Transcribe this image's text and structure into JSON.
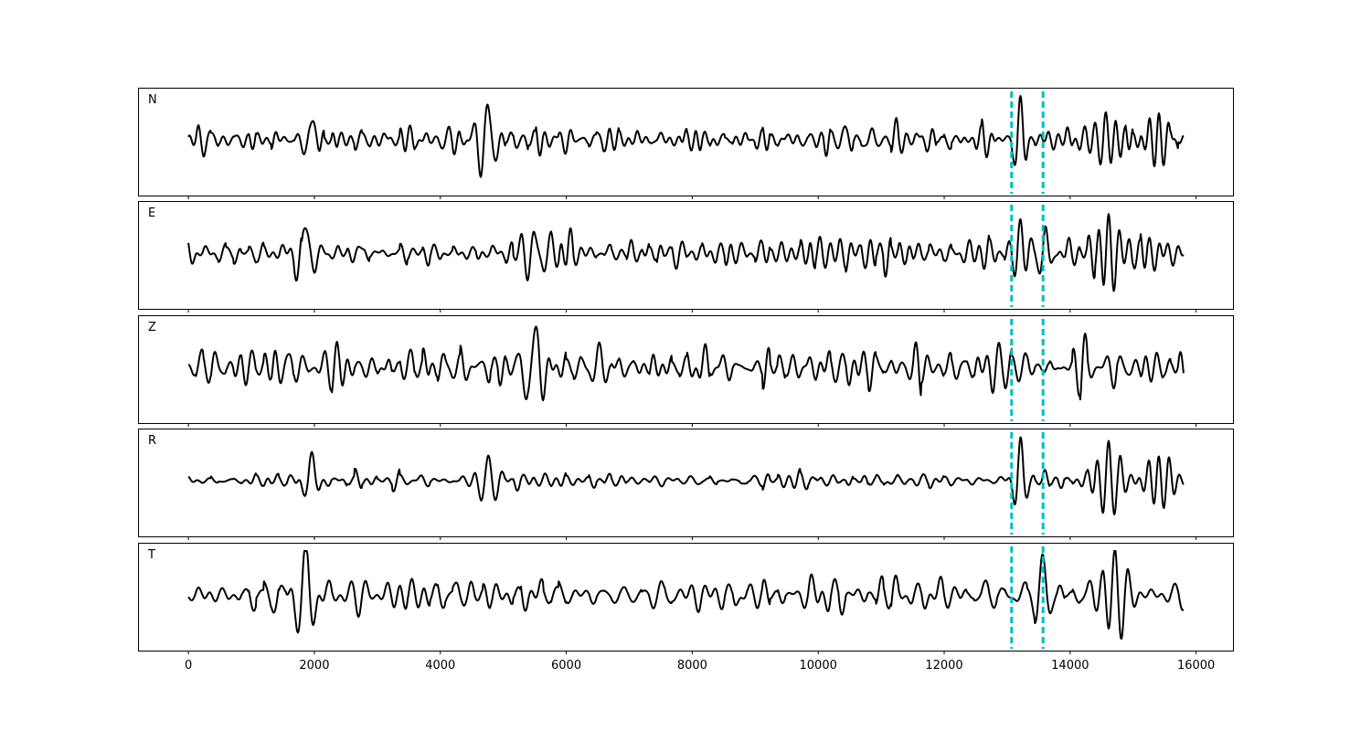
{
  "chart_data": {
    "type": "line",
    "title": "",
    "xlabel": "",
    "ylabel": "",
    "xlim": [
      -800,
      16600
    ],
    "x_ticks": [
      0,
      2000,
      4000,
      6000,
      8000,
      10000,
      12000,
      14000,
      16000
    ],
    "x_tick_labels": [
      "0",
      "2000",
      "4000",
      "6000",
      "8000",
      "10000",
      "12000",
      "14000",
      "16000"
    ],
    "grid": false,
    "legend": "none",
    "line_color": "#000000",
    "marker_color": "#00bfbf",
    "markers_x": [
      13070,
      13570
    ],
    "x_extent": [
      0,
      15800
    ],
    "panels": [
      {
        "label": "N",
        "ylim": [
          -1,
          1
        ],
        "noise_level": 0.22,
        "bursts": [
          {
            "x": 1950,
            "amp": 0.55,
            "width": 150
          },
          {
            "x": 4750,
            "amp": 0.72,
            "width": 220
          },
          {
            "x": 10380,
            "amp": 0.45,
            "width": 90
          },
          {
            "x": 13200,
            "amp": 0.9,
            "width": 110
          },
          {
            "x": 14550,
            "amp": 0.55,
            "width": 350
          },
          {
            "x": 15400,
            "amp": 0.55,
            "width": 250
          }
        ]
      },
      {
        "label": "E",
        "ylim": [
          -1,
          1
        ],
        "noise_level": 0.3,
        "bursts": [
          {
            "x": 1850,
            "amp": 0.72,
            "width": 180
          },
          {
            "x": 5500,
            "amp": 0.45,
            "width": 400
          },
          {
            "x": 13200,
            "amp": 0.8,
            "width": 120
          },
          {
            "x": 13600,
            "amp": 0.8,
            "width": 140
          },
          {
            "x": 14600,
            "amp": 0.85,
            "width": 200
          }
        ]
      },
      {
        "label": "Z",
        "ylim": [
          -1,
          1
        ],
        "noise_level": 0.3,
        "bursts": [
          {
            "x": 5500,
            "amp": 0.95,
            "width": 220
          },
          {
            "x": 6500,
            "amp": 0.4,
            "width": 150
          },
          {
            "x": 13300,
            "amp": 0.45,
            "width": 150
          }
        ]
      },
      {
        "label": "R",
        "ylim": [
          -1,
          1
        ],
        "noise_level": 0.2,
        "bursts": [
          {
            "x": 1950,
            "amp": 0.5,
            "width": 150
          },
          {
            "x": 4750,
            "amp": 0.62,
            "width": 220
          },
          {
            "x": 13200,
            "amp": 0.9,
            "width": 110
          },
          {
            "x": 14600,
            "amp": 0.8,
            "width": 250
          },
          {
            "x": 15400,
            "amp": 0.7,
            "width": 250
          }
        ]
      },
      {
        "label": "T",
        "ylim": [
          -1,
          1
        ],
        "noise_level": 0.3,
        "bursts": [
          {
            "x": 1850,
            "amp": 0.95,
            "width": 220
          },
          {
            "x": 13550,
            "amp": 0.85,
            "width": 150
          },
          {
            "x": 14700,
            "amp": 0.95,
            "width": 250
          }
        ]
      }
    ]
  }
}
